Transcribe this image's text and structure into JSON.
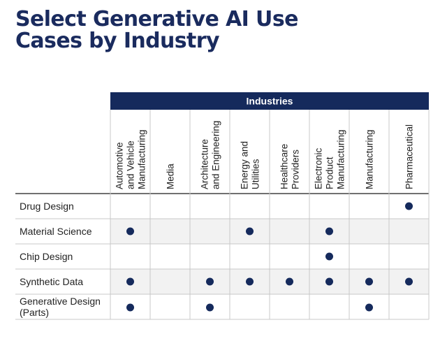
{
  "title_lines": [
    "Select Generative AI Use",
    "Cases by Industry"
  ],
  "chart_data": {
    "type": "table",
    "column_group_label": "Industries",
    "columns": [
      [
        "Automotive",
        "and Vehicle",
        "Manufacturing"
      ],
      [
        "Media"
      ],
      [
        "Architecture",
        "and Engineering"
      ],
      [
        "Energy and",
        "Utilities"
      ],
      [
        "Healthcare",
        "Providers"
      ],
      [
        "Electronic",
        "Product",
        "Manufacturing"
      ],
      [
        "Manufacturing"
      ],
      [
        "Pharmaceutical"
      ]
    ],
    "rows": [
      {
        "label": [
          "Drug Design"
        ],
        "marks": [
          0,
          0,
          0,
          0,
          0,
          0,
          0,
          1
        ]
      },
      {
        "label": [
          "Material Science"
        ],
        "marks": [
          1,
          0,
          0,
          1,
          0,
          1,
          0,
          0
        ]
      },
      {
        "label": [
          "Chip Design"
        ],
        "marks": [
          0,
          0,
          0,
          0,
          0,
          1,
          0,
          0
        ]
      },
      {
        "label": [
          "Synthetic Data"
        ],
        "marks": [
          1,
          0,
          1,
          1,
          1,
          1,
          1,
          1
        ]
      },
      {
        "label": [
          "Generative Design",
          "(Parts)"
        ],
        "marks": [
          1,
          0,
          1,
          0,
          0,
          0,
          1,
          0
        ]
      }
    ],
    "colors": {
      "navy": "#152a5c",
      "stripe": "#f2f2f2",
      "grid": "#c8c8c8",
      "header_border": "#1a1a1a"
    }
  }
}
